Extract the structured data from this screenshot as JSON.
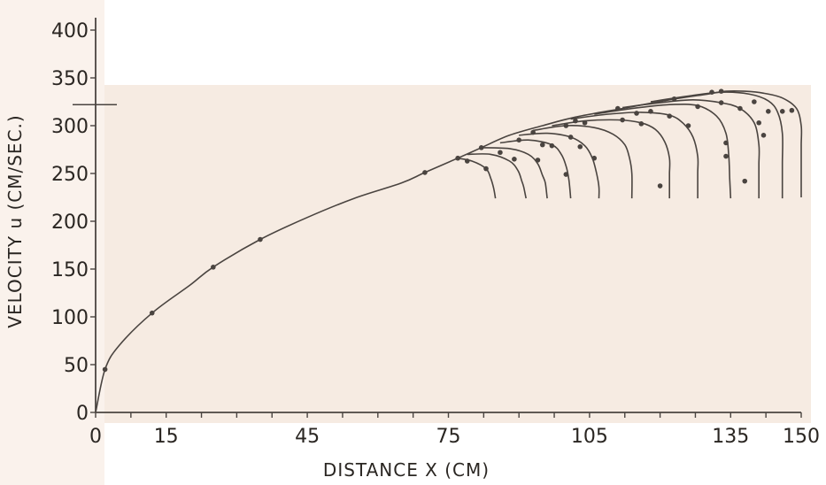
{
  "chart_data": {
    "type": "line",
    "xlabel": "DISTANCE X (CM)",
    "ylabel": "VELOCITY u (CM/SEC.)",
    "xlim": [
      0,
      150
    ],
    "ylim": [
      0,
      400
    ],
    "x_ticks": [
      "0",
      "15",
      "45",
      "75",
      "105",
      "135",
      "150"
    ],
    "x_tick_values": [
      0,
      15,
      45,
      75,
      105,
      135,
      150
    ],
    "y_ticks": [
      "0",
      "50",
      "100",
      "150",
      "200",
      "250",
      "300",
      "350",
      "400"
    ],
    "y_tick_values": [
      0,
      50,
      100,
      150,
      200,
      250,
      300,
      350,
      400
    ],
    "colors": {
      "paper": "#f6ebe2",
      "ink": "#4a4440"
    },
    "series": [
      {
        "points": [
          [
            0,
            0
          ],
          [
            2,
            45
          ],
          [
            5,
            70
          ],
          [
            12,
            104
          ],
          [
            20,
            133
          ],
          [
            25,
            152
          ],
          [
            35,
            181
          ],
          [
            45,
            204
          ],
          [
            55,
            224
          ],
          [
            65,
            240
          ],
          [
            70,
            251
          ],
          [
            77,
            266
          ],
          [
            82,
            277
          ],
          [
            88,
            290
          ],
          [
            95,
            300
          ],
          [
            102,
            309
          ],
          [
            112,
            318
          ],
          [
            122,
            327
          ],
          [
            130,
            333
          ],
          [
            134,
            336
          ],
          [
            138,
            336
          ],
          [
            142,
            334
          ],
          [
            146,
            329
          ],
          [
            149,
            318
          ],
          [
            150,
            300
          ],
          [
            150,
            280
          ],
          [
            150,
            260
          ],
          [
            150,
            240
          ],
          [
            150,
            225
          ]
        ]
      },
      {
        "points": [
          [
            77,
            266
          ],
          [
            80,
            263
          ],
          [
            83,
            255
          ],
          [
            84,
            245
          ],
          [
            84.6,
            235
          ],
          [
            85,
            224
          ]
        ]
      },
      {
        "points": [
          [
            79,
            270
          ],
          [
            84,
            270
          ],
          [
            88,
            263
          ],
          [
            89.8,
            253
          ],
          [
            90.6,
            242
          ],
          [
            91,
            236
          ],
          [
            91.5,
            224
          ]
        ]
      },
      {
        "points": [
          [
            82,
            277
          ],
          [
            88,
            276
          ],
          [
            92,
            270
          ],
          [
            94,
            260
          ],
          [
            95,
            248
          ],
          [
            95.6,
            240
          ],
          [
            96,
            224
          ]
        ]
      },
      {
        "points": [
          [
            86,
            282
          ],
          [
            92,
            285
          ],
          [
            97,
            280
          ],
          [
            99,
            270
          ],
          [
            100,
            258
          ],
          [
            100.6,
            244
          ],
          [
            101,
            224
          ]
        ]
      },
      {
        "points": [
          [
            90,
            290
          ],
          [
            96,
            292
          ],
          [
            101,
            288
          ],
          [
            104,
            279
          ],
          [
            105.6,
            266
          ],
          [
            106.5,
            250
          ],
          [
            107,
            236
          ],
          [
            107,
            224
          ]
        ]
      },
      {
        "points": [
          [
            93,
            295
          ],
          [
            100,
            300
          ],
          [
            106,
            298
          ],
          [
            110,
            291
          ],
          [
            112.5,
            280
          ],
          [
            113.5,
            266
          ],
          [
            114,
            250
          ],
          [
            114,
            224
          ]
        ]
      },
      {
        "points": [
          [
            97,
            300
          ],
          [
            104,
            305
          ],
          [
            111,
            306
          ],
          [
            116,
            303
          ],
          [
            119,
            296
          ],
          [
            121,
            283
          ],
          [
            122,
            266
          ],
          [
            122,
            250
          ],
          [
            122,
            238
          ],
          [
            122,
            224
          ]
        ]
      },
      {
        "points": [
          [
            101,
            307
          ],
          [
            109,
            312
          ],
          [
            116,
            314
          ],
          [
            122,
            311
          ],
          [
            125,
            302
          ],
          [
            127,
            288
          ],
          [
            128,
            268
          ],
          [
            128,
            250
          ],
          [
            128,
            224
          ]
        ]
      },
      {
        "points": [
          [
            106,
            312
          ],
          [
            114,
            318
          ],
          [
            122,
            322
          ],
          [
            128,
            321
          ],
          [
            132,
            310
          ],
          [
            134,
            292
          ],
          [
            134.6,
            268
          ],
          [
            134.8,
            245
          ],
          [
            135,
            224
          ]
        ]
      },
      {
        "points": [
          [
            112,
            319
          ],
          [
            120,
            324
          ],
          [
            127,
            327
          ],
          [
            133,
            324
          ],
          [
            137,
            318
          ],
          [
            140,
            303
          ],
          [
            141,
            280
          ],
          [
            141,
            260
          ],
          [
            141,
            244
          ],
          [
            141,
            224
          ]
        ]
      },
      {
        "points": [
          [
            118,
            325
          ],
          [
            126,
            331
          ],
          [
            133,
            335
          ],
          [
            139,
            333
          ],
          [
            143,
            326
          ],
          [
            145,
            314
          ],
          [
            146,
            292
          ],
          [
            146,
            260
          ],
          [
            146,
            224
          ]
        ]
      }
    ],
    "markers": [
      [
        2,
        45
      ],
      [
        12,
        104
      ],
      [
        25,
        152
      ],
      [
        35,
        181
      ],
      [
        70,
        251
      ],
      [
        77,
        266
      ],
      [
        79,
        263
      ],
      [
        82,
        277
      ],
      [
        83,
        255
      ],
      [
        86,
        272
      ],
      [
        89,
        265
      ],
      [
        90,
        285
      ],
      [
        93,
        293
      ],
      [
        94,
        264
      ],
      [
        95,
        280
      ],
      [
        97,
        279
      ],
      [
        100,
        249
      ],
      [
        100,
        300
      ],
      [
        101,
        288
      ],
      [
        102,
        305
      ],
      [
        103,
        278
      ],
      [
        104,
        303
      ],
      [
        106,
        266
      ],
      [
        111,
        318
      ],
      [
        112,
        306
      ],
      [
        115,
        313
      ],
      [
        116,
        302
      ],
      [
        118,
        315
      ],
      [
        120,
        237
      ],
      [
        122,
        310
      ],
      [
        123,
        328
      ],
      [
        126,
        300
      ],
      [
        128,
        320
      ],
      [
        131,
        335
      ],
      [
        133,
        336
      ],
      [
        133,
        324
      ],
      [
        134,
        268
      ],
      [
        134,
        282
      ],
      [
        137,
        318
      ],
      [
        138,
        242
      ],
      [
        140,
        325
      ],
      [
        141,
        303
      ],
      [
        142,
        290
      ],
      [
        143,
        315
      ],
      [
        146,
        315
      ],
      [
        148,
        316
      ]
    ]
  }
}
